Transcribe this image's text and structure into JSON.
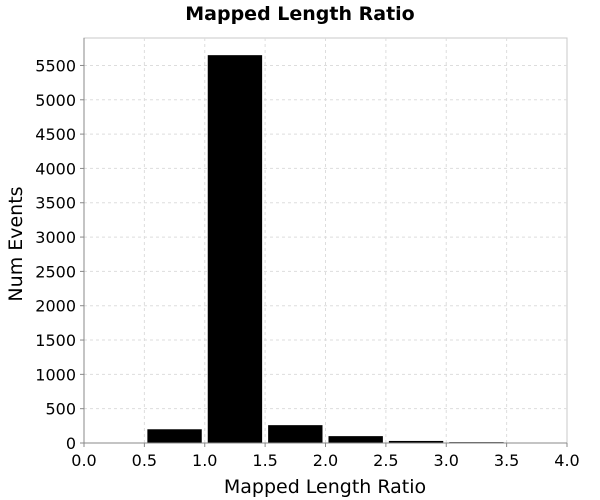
{
  "chart_data": {
    "type": "bar",
    "title": "Mapped Length Ratio",
    "xlabel": "Mapped Length Ratio",
    "ylabel": "Num Events",
    "xlim": [
      0.0,
      4.0
    ],
    "ylim": [
      0,
      5900
    ],
    "grid": true,
    "bins": [
      {
        "x0": 0.0,
        "x1": 0.5,
        "value": 3
      },
      {
        "x0": 0.5,
        "x1": 1.0,
        "value": 200
      },
      {
        "x0": 1.0,
        "x1": 1.5,
        "value": 5650
      },
      {
        "x0": 1.5,
        "x1": 2.0,
        "value": 260
      },
      {
        "x0": 2.0,
        "x1": 2.5,
        "value": 100
      },
      {
        "x0": 2.5,
        "x1": 3.0,
        "value": 30
      },
      {
        "x0": 3.0,
        "x1": 3.5,
        "value": 12
      },
      {
        "x0": 3.5,
        "x1": 4.0,
        "value": 5
      }
    ],
    "x_ticks": [
      "0.0",
      "0.5",
      "1.0",
      "1.5",
      "2.0",
      "2.5",
      "3.0",
      "3.5",
      "4.0"
    ],
    "y_ticks": [
      "0",
      "500",
      "1000",
      "1500",
      "2000",
      "2500",
      "3000",
      "3500",
      "4000",
      "4500",
      "5000",
      "5500"
    ],
    "bar_color": "#000000"
  }
}
